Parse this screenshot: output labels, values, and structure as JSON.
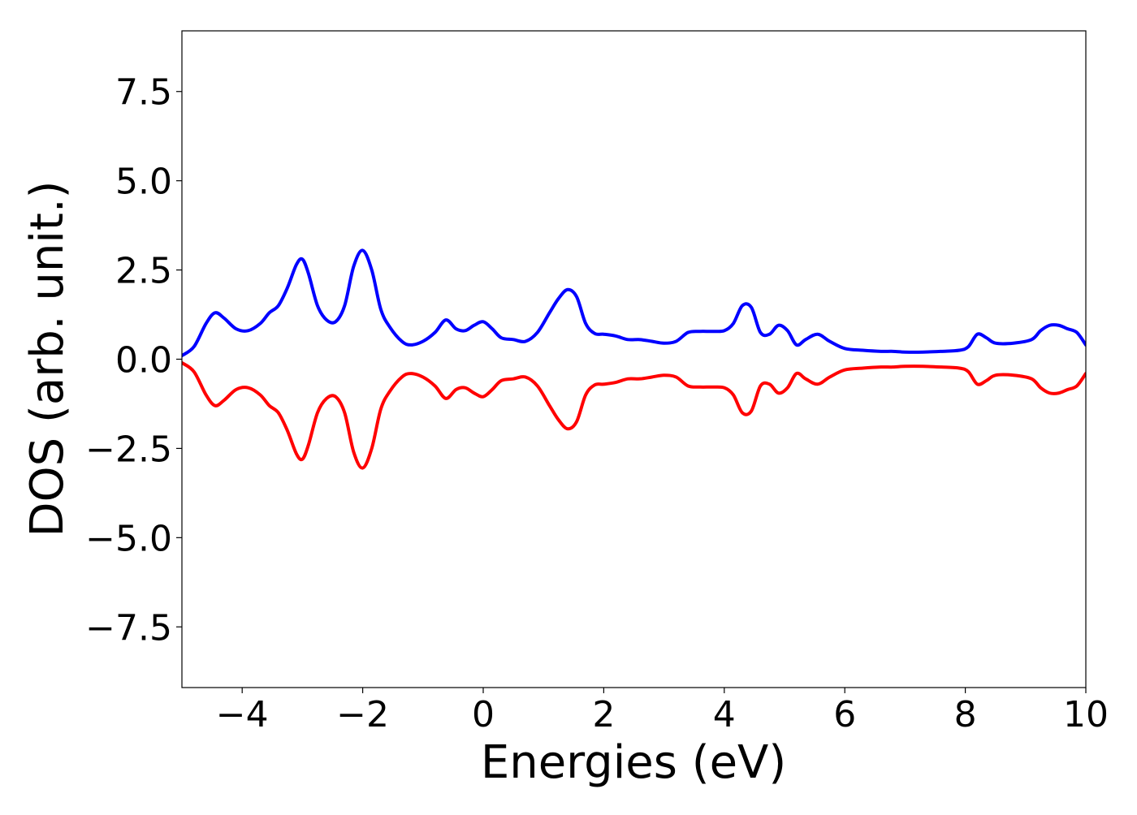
{
  "chart_data": {
    "type": "line",
    "title": "",
    "xlabel": "Energies (eV)",
    "ylabel": "DOS (arb. unit.)",
    "xlim": [
      -5,
      10
    ],
    "ylim": [
      -9.2,
      9.2
    ],
    "x_ticks": [
      -4,
      -2,
      0,
      2,
      4,
      6,
      8,
      10
    ],
    "x_tick_labels": [
      "−4",
      "−2",
      "0",
      "2",
      "4",
      "6",
      "8",
      "10"
    ],
    "y_ticks": [
      7.5,
      5.0,
      2.5,
      0.0,
      -2.5,
      -5.0,
      -7.5
    ],
    "y_tick_labels": [
      "7.5",
      "5.0",
      "2.5",
      "0.0",
      "−2.5",
      "−5.0",
      "−7.5"
    ],
    "grid": false,
    "legend": "none",
    "x": [
      -5.0,
      -4.8,
      -4.6,
      -4.45,
      -4.3,
      -4.1,
      -3.9,
      -3.7,
      -3.55,
      -3.4,
      -3.25,
      -3.1,
      -3.0,
      -2.9,
      -2.75,
      -2.6,
      -2.45,
      -2.3,
      -2.15,
      -2.0,
      -1.85,
      -1.7,
      -1.55,
      -1.35,
      -1.2,
      -1.0,
      -0.8,
      -0.62,
      -0.45,
      -0.3,
      -0.15,
      0.0,
      0.15,
      0.3,
      0.5,
      0.7,
      0.9,
      1.1,
      1.25,
      1.4,
      1.55,
      1.7,
      1.85,
      2.0,
      2.2,
      2.4,
      2.6,
      2.8,
      3.0,
      3.2,
      3.4,
      3.6,
      3.8,
      4.0,
      4.15,
      4.3,
      4.45,
      4.6,
      4.75,
      4.9,
      5.05,
      5.2,
      5.35,
      5.55,
      5.75,
      6.0,
      6.3,
      6.6,
      6.8,
      7.0,
      7.3,
      7.6,
      7.9,
      8.05,
      8.2,
      8.35,
      8.5,
      8.8,
      9.1,
      9.25,
      9.4,
      9.55,
      9.7,
      9.85,
      10.0
    ],
    "series": [
      {
        "color": "#0000ff",
        "values": [
          0.1,
          0.35,
          1.0,
          1.3,
          1.15,
          0.85,
          0.8,
          1.0,
          1.3,
          1.5,
          2.0,
          2.65,
          2.8,
          2.4,
          1.5,
          1.1,
          1.05,
          1.5,
          2.6,
          3.05,
          2.5,
          1.4,
          0.9,
          0.5,
          0.4,
          0.5,
          0.75,
          1.1,
          0.85,
          0.8,
          0.95,
          1.05,
          0.85,
          0.6,
          0.55,
          0.5,
          0.75,
          1.3,
          1.7,
          1.95,
          1.75,
          1.0,
          0.72,
          0.7,
          0.65,
          0.55,
          0.55,
          0.5,
          0.45,
          0.5,
          0.75,
          0.78,
          0.78,
          0.8,
          1.0,
          1.5,
          1.45,
          0.75,
          0.7,
          0.95,
          0.8,
          0.4,
          0.55,
          0.7,
          0.5,
          0.3,
          0.25,
          0.22,
          0.22,
          0.2,
          0.2,
          0.22,
          0.25,
          0.35,
          0.7,
          0.6,
          0.45,
          0.45,
          0.55,
          0.8,
          0.95,
          0.95,
          0.85,
          0.75,
          0.4
        ]
      },
      {
        "color": "#ff0000",
        "values": [
          -0.1,
          -0.35,
          -1.0,
          -1.3,
          -1.15,
          -0.85,
          -0.8,
          -1.0,
          -1.3,
          -1.5,
          -2.0,
          -2.65,
          -2.8,
          -2.4,
          -1.5,
          -1.1,
          -1.05,
          -1.5,
          -2.6,
          -3.05,
          -2.5,
          -1.4,
          -0.9,
          -0.5,
          -0.4,
          -0.5,
          -0.75,
          -1.1,
          -0.85,
          -0.8,
          -0.95,
          -1.05,
          -0.85,
          -0.6,
          -0.55,
          -0.5,
          -0.75,
          -1.3,
          -1.7,
          -1.95,
          -1.75,
          -1.0,
          -0.72,
          -0.7,
          -0.65,
          -0.55,
          -0.55,
          -0.5,
          -0.45,
          -0.5,
          -0.75,
          -0.78,
          -0.78,
          -0.8,
          -1.0,
          -1.5,
          -1.45,
          -0.75,
          -0.7,
          -0.95,
          -0.8,
          -0.4,
          -0.55,
          -0.7,
          -0.5,
          -0.3,
          -0.25,
          -0.22,
          -0.22,
          -0.2,
          -0.2,
          -0.22,
          -0.25,
          -0.35,
          -0.7,
          -0.6,
          -0.45,
          -0.45,
          -0.55,
          -0.8,
          -0.95,
          -0.95,
          -0.85,
          -0.75,
          -0.4
        ]
      }
    ]
  }
}
